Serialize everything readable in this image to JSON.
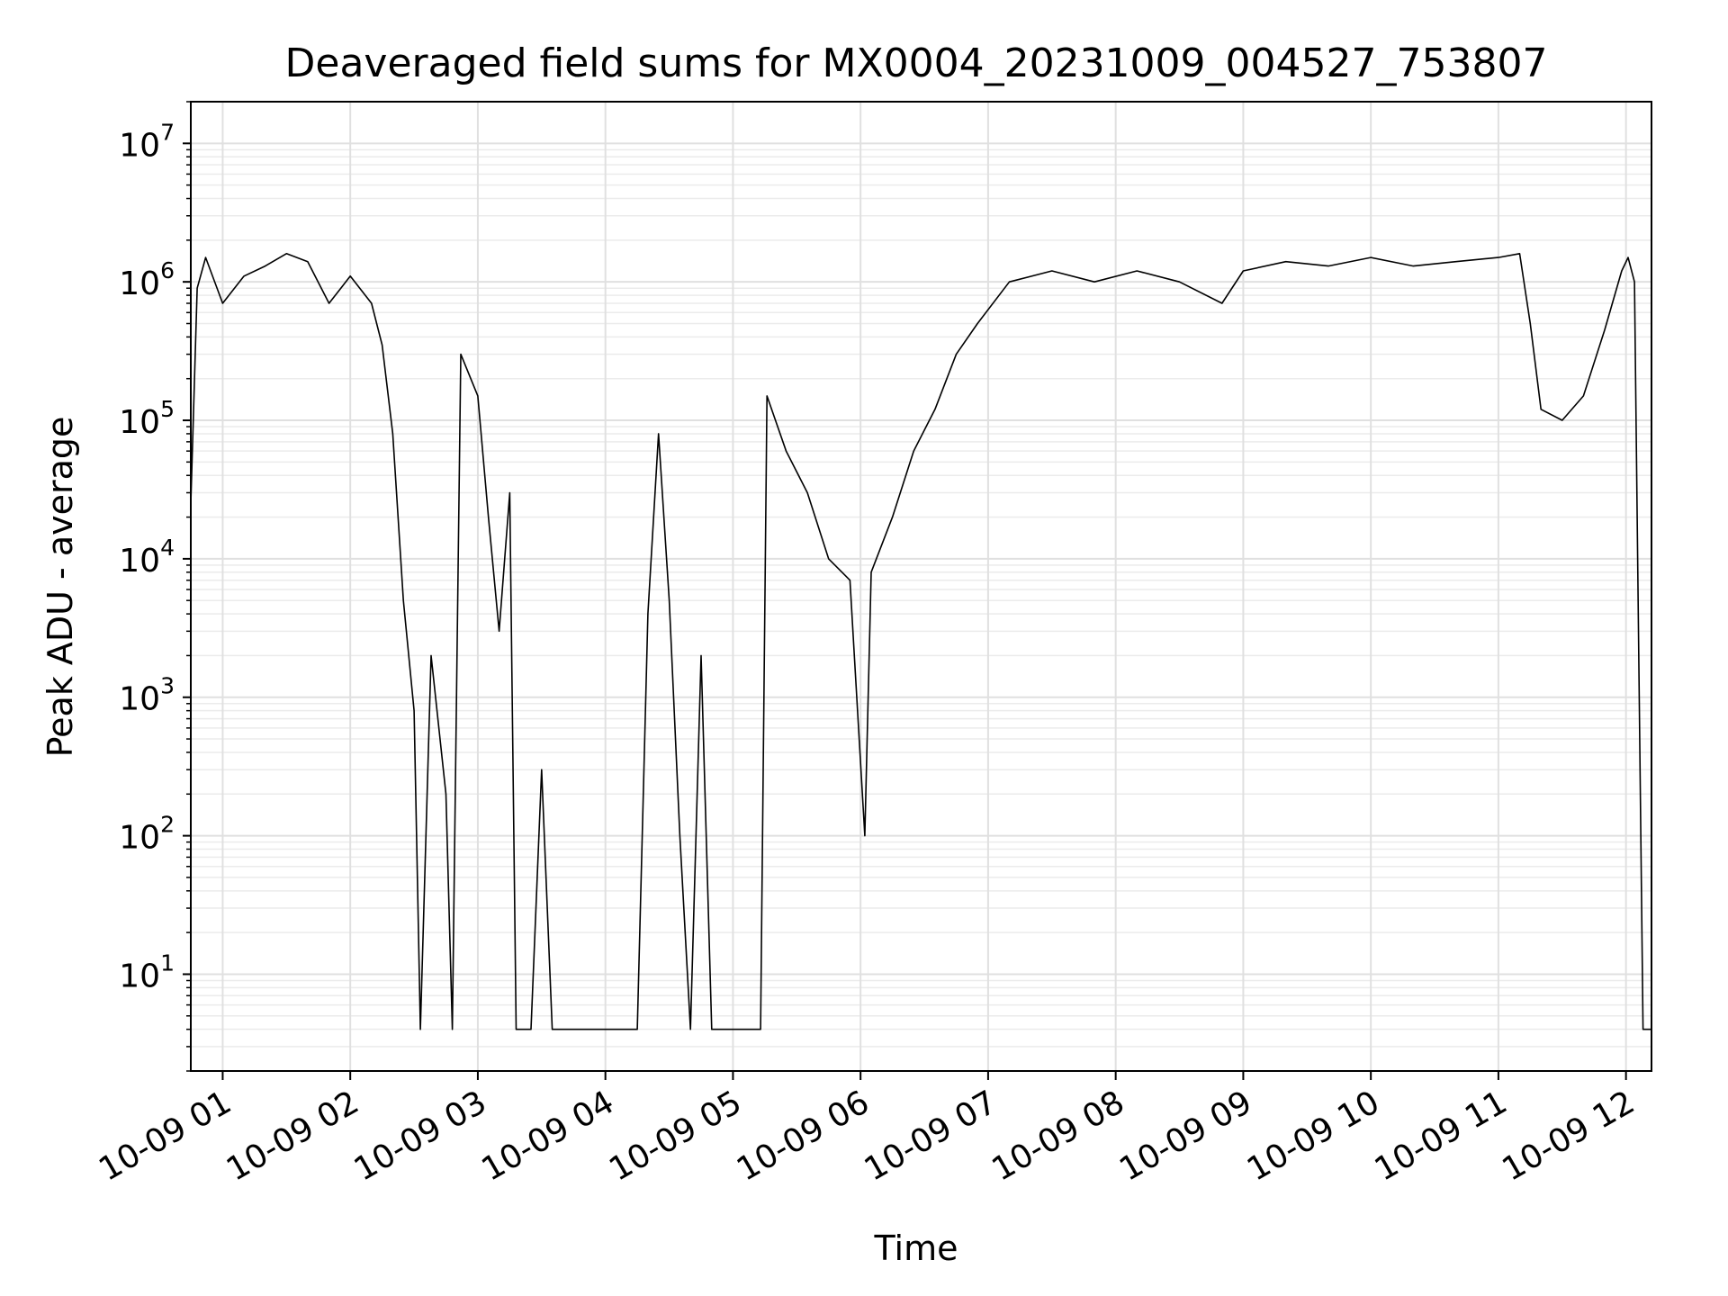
{
  "chart_data": {
    "type": "line",
    "title": "Deaveraged field sums for MX0004_20231009_004527_753807",
    "xlabel": "Time",
    "ylabel": "Peak ADU - average",
    "yscale": "log",
    "grid": true,
    "x_range": [
      "2023-10-09 00:45",
      "2023-10-09 12:12"
    ],
    "ylim": [
      2,
      20000000
    ],
    "x_ticks": [
      "10-09 01",
      "10-09 02",
      "10-09 03",
      "10-09 04",
      "10-09 05",
      "10-09 06",
      "10-09 07",
      "10-09 08",
      "10-09 09",
      "10-09 10",
      "10-09 11",
      "10-09 12"
    ],
    "y_ticks": [
      {
        "value": 10,
        "base": "10",
        "exp": "1"
      },
      {
        "value": 100,
        "base": "10",
        "exp": "2"
      },
      {
        "value": 1000,
        "base": "10",
        "exp": "3"
      },
      {
        "value": 10000,
        "base": "10",
        "exp": "4"
      },
      {
        "value": 100000,
        "base": "10",
        "exp": "5"
      },
      {
        "value": 1000000,
        "base": "10",
        "exp": "6"
      },
      {
        "value": 10000000,
        "base": "10",
        "exp": "7"
      }
    ],
    "series": [
      {
        "color": "#000000",
        "points": [
          [
            "2023-10-09 00:45",
            25000
          ],
          [
            "2023-10-09 00:48",
            900000
          ],
          [
            "2023-10-09 00:52",
            1500000
          ],
          [
            "2023-10-09 01:00",
            700000
          ],
          [
            "2023-10-09 01:10",
            1100000
          ],
          [
            "2023-10-09 01:20",
            1300000
          ],
          [
            "2023-10-09 01:30",
            1600000
          ],
          [
            "2023-10-09 01:40",
            1400000
          ],
          [
            "2023-10-09 01:50",
            700000
          ],
          [
            "2023-10-09 02:00",
            1100000
          ],
          [
            "2023-10-09 02:10",
            700000
          ],
          [
            "2023-10-09 02:15",
            350000
          ],
          [
            "2023-10-09 02:20",
            80000
          ],
          [
            "2023-10-09 02:25",
            5000
          ],
          [
            "2023-10-09 02:30",
            800
          ],
          [
            "2023-10-09 02:33",
            4
          ],
          [
            "2023-10-09 02:38",
            2000
          ],
          [
            "2023-10-09 02:45",
            200
          ],
          [
            "2023-10-09 02:48",
            4
          ],
          [
            "2023-10-09 02:52",
            300000
          ],
          [
            "2023-10-09 03:00",
            150000
          ],
          [
            "2023-10-09 03:05",
            20000
          ],
          [
            "2023-10-09 03:10",
            3000
          ],
          [
            "2023-10-09 03:15",
            30000
          ],
          [
            "2023-10-09 03:18",
            4
          ],
          [
            "2023-10-09 03:25",
            4
          ],
          [
            "2023-10-09 03:30",
            300
          ],
          [
            "2023-10-09 03:35",
            4
          ],
          [
            "2023-10-09 04:00",
            4
          ],
          [
            "2023-10-09 04:15",
            4
          ],
          [
            "2023-10-09 04:20",
            4000
          ],
          [
            "2023-10-09 04:25",
            80000
          ],
          [
            "2023-10-09 04:30",
            5000
          ],
          [
            "2023-10-09 04:35",
            100
          ],
          [
            "2023-10-09 04:40",
            4
          ],
          [
            "2023-10-09 04:45",
            2000
          ],
          [
            "2023-10-09 04:50",
            4
          ],
          [
            "2023-10-09 05:00",
            4
          ],
          [
            "2023-10-09 05:13",
            4
          ],
          [
            "2023-10-09 05:16",
            150000
          ],
          [
            "2023-10-09 05:25",
            60000
          ],
          [
            "2023-10-09 05:35",
            30000
          ],
          [
            "2023-10-09 05:45",
            10000
          ],
          [
            "2023-10-09 05:55",
            7000
          ],
          [
            "2023-10-09 06:02",
            100
          ],
          [
            "2023-10-09 06:05",
            8000
          ],
          [
            "2023-10-09 06:15",
            20000
          ],
          [
            "2023-10-09 06:25",
            60000
          ],
          [
            "2023-10-09 06:35",
            120000
          ],
          [
            "2023-10-09 06:45",
            300000
          ],
          [
            "2023-10-09 06:55",
            500000
          ],
          [
            "2023-10-09 07:10",
            1000000
          ],
          [
            "2023-10-09 07:30",
            1200000
          ],
          [
            "2023-10-09 07:50",
            1000000
          ],
          [
            "2023-10-09 08:10",
            1200000
          ],
          [
            "2023-10-09 08:30",
            1000000
          ],
          [
            "2023-10-09 08:50",
            700000
          ],
          [
            "2023-10-09 09:00",
            1200000
          ],
          [
            "2023-10-09 09:20",
            1400000
          ],
          [
            "2023-10-09 09:40",
            1300000
          ],
          [
            "2023-10-09 10:00",
            1500000
          ],
          [
            "2023-10-09 10:20",
            1300000
          ],
          [
            "2023-10-09 10:40",
            1400000
          ],
          [
            "2023-10-09 11:00",
            1500000
          ],
          [
            "2023-10-09 11:10",
            1600000
          ],
          [
            "2023-10-09 11:15",
            500000
          ],
          [
            "2023-10-09 11:20",
            120000
          ],
          [
            "2023-10-09 11:30",
            100000
          ],
          [
            "2023-10-09 11:40",
            150000
          ],
          [
            "2023-10-09 11:50",
            450000
          ],
          [
            "2023-10-09 11:58",
            1200000
          ],
          [
            "2023-10-09 12:01",
            1500000
          ],
          [
            "2023-10-09 12:04",
            1000000
          ],
          [
            "2023-10-09 12:08",
            4
          ],
          [
            "2023-10-09 12:12",
            4
          ]
        ]
      }
    ]
  }
}
